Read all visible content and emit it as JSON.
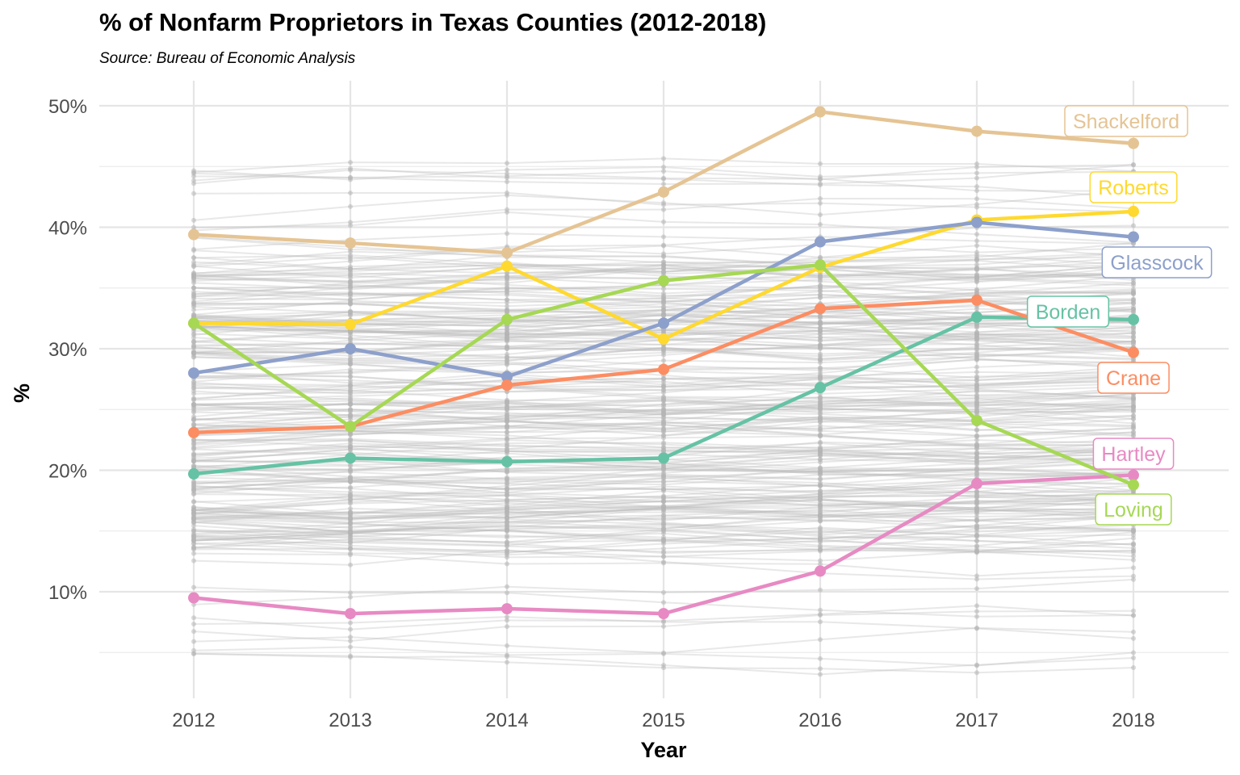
{
  "chart_data": {
    "type": "line",
    "title": "% of Nonfarm Proprietors in Texas Counties (2012-2018)",
    "subtitle": "Source: Bureau of Economic Analysis",
    "xlabel": "Year",
    "ylabel": "%",
    "x": [
      2012,
      2013,
      2014,
      2015,
      2016,
      2017,
      2018
    ],
    "x_tick_labels": [
      "2012",
      "2013",
      "2014",
      "2015",
      "2016",
      "2017",
      "2018"
    ],
    "y_tick_labels": [
      "10%",
      "20%",
      "30%",
      "40%",
      "50%"
    ],
    "y_ticks": [
      10,
      20,
      30,
      40,
      50
    ],
    "ylim": [
      1.5,
      52.2
    ],
    "grid": true,
    "legend": "direct labels at right end of lines",
    "background_series": {
      "description": "All other Texas counties drawn as thin light-gray lines, mostly between ~14% and ~42%",
      "color": "#bdbdbd"
    },
    "series": [
      {
        "name": "Shackelford",
        "color": "#E5C494",
        "values": [
          39.4,
          38.7,
          37.9,
          42.9,
          49.5,
          47.9,
          46.9
        ]
      },
      {
        "name": "Roberts",
        "color": "#FFD92F",
        "values": [
          32.1,
          32.0,
          36.8,
          30.8,
          36.7,
          40.6,
          41.3
        ]
      },
      {
        "name": "Glasscock",
        "color": "#8DA0CB",
        "values": [
          28.0,
          30.0,
          27.7,
          32.1,
          38.8,
          40.4,
          39.2
        ]
      },
      {
        "name": "Borden",
        "color": "#66C2A5",
        "values": [
          19.7,
          21.0,
          20.7,
          21.0,
          26.8,
          32.6,
          32.4
        ]
      },
      {
        "name": "Crane",
        "color": "#FC8D62",
        "values": [
          23.1,
          23.6,
          27.0,
          28.3,
          33.3,
          34.0,
          29.7
        ]
      },
      {
        "name": "Hartley",
        "color": "#E78AC3",
        "values": [
          9.5,
          8.2,
          8.6,
          8.2,
          11.7,
          18.9,
          19.6
        ]
      },
      {
        "name": "Loving",
        "color": "#A6D854",
        "values": [
          32.1,
          23.6,
          32.4,
          35.6,
          36.9,
          24.1,
          18.8
        ]
      }
    ]
  }
}
